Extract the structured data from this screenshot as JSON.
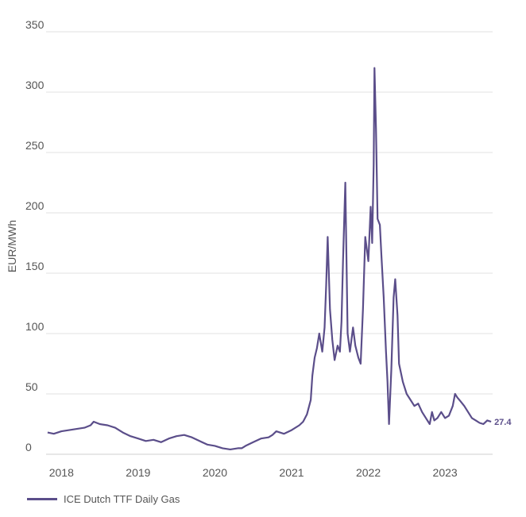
{
  "chart_data": {
    "type": "line",
    "ylabel": "EUR/MWh",
    "ylim": [
      0,
      350
    ],
    "yticks": [
      0,
      50,
      100,
      150,
      200,
      250,
      300,
      350
    ],
    "xlim": [
      2017.8,
      2023.62
    ],
    "xticks": [
      2018,
      2019,
      2020,
      2021,
      2022,
      2023
    ],
    "xtick_labels": [
      "2018",
      "2019",
      "2020",
      "2021",
      "2022",
      "2023"
    ],
    "grid": "horizontal",
    "legend": "bottom-left",
    "end_label": "27.4",
    "series": [
      {
        "name": "ICE Dutch TTF Daily Gas",
        "color": "#5b4e8a",
        "x": [
          2017.82,
          2017.9,
          2018.0,
          2018.1,
          2018.2,
          2018.3,
          2018.38,
          2018.42,
          2018.5,
          2018.6,
          2018.7,
          2018.8,
          2018.9,
          2019.0,
          2019.1,
          2019.2,
          2019.3,
          2019.4,
          2019.5,
          2019.6,
          2019.7,
          2019.8,
          2019.9,
          2020.0,
          2020.1,
          2020.2,
          2020.3,
          2020.35,
          2020.4,
          2020.5,
          2020.6,
          2020.7,
          2020.75,
          2020.8,
          2020.9,
          2021.0,
          2021.1,
          2021.15,
          2021.2,
          2021.25,
          2021.27,
          2021.3,
          2021.33,
          2021.36,
          2021.4,
          2021.43,
          2021.45,
          2021.47,
          2021.5,
          2021.53,
          2021.56,
          2021.6,
          2021.63,
          2021.65,
          2021.67,
          2021.7,
          2021.73,
          2021.76,
          2021.8,
          2021.83,
          2021.87,
          2021.9,
          2021.93,
          2021.96,
          2022.0,
          2022.03,
          2022.05,
          2022.07,
          2022.08,
          2022.1,
          2022.12,
          2022.15,
          2022.17,
          2022.2,
          2022.23,
          2022.25,
          2022.27,
          2022.3,
          2022.33,
          2022.35,
          2022.38,
          2022.4,
          2022.45,
          2022.5,
          2022.55,
          2022.6,
          2022.65,
          2022.7,
          2022.75,
          2022.8,
          2022.83,
          2022.86,
          2022.9,
          2022.95,
          2023.0,
          2023.05,
          2023.1,
          2023.13,
          2023.16,
          2023.2,
          2023.25,
          2023.3,
          2023.35,
          2023.4,
          2023.45,
          2023.5,
          2023.55,
          2023.6
        ],
        "values": [
          18,
          17,
          19,
          20,
          21,
          22,
          24,
          27,
          25,
          24,
          22,
          18,
          15,
          13,
          11,
          12,
          10,
          13,
          15,
          16,
          14,
          11,
          8,
          7,
          5,
          4,
          5,
          5,
          7,
          10,
          13,
          14,
          16,
          19,
          17,
          20,
          24,
          27,
          33,
          45,
          65,
          80,
          88,
          100,
          85,
          105,
          140,
          180,
          120,
          95,
          78,
          90,
          85,
          110,
          160,
          225,
          100,
          85,
          105,
          90,
          80,
          75,
          120,
          180,
          160,
          205,
          175,
          240,
          320,
          270,
          195,
          190,
          165,
          130,
          85,
          60,
          25,
          70,
          130,
          145,
          115,
          75,
          60,
          50,
          45,
          40,
          42,
          35,
          30,
          25,
          35,
          28,
          30,
          35,
          30,
          32,
          40,
          50,
          47,
          44,
          40,
          35,
          30,
          28,
          26,
          25,
          28,
          27
        ]
      }
    ]
  }
}
